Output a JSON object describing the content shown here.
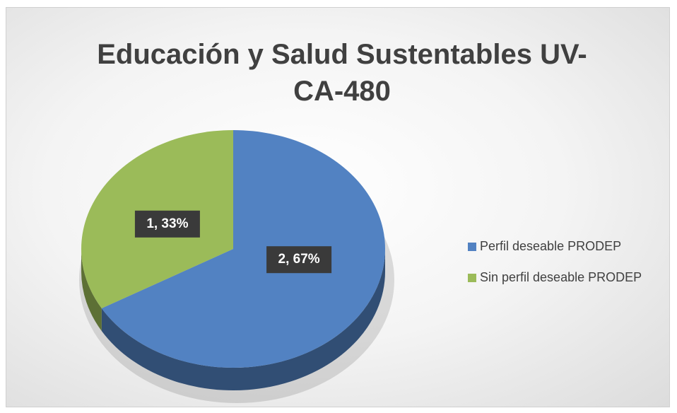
{
  "chart_data": {
    "type": "pie",
    "title": "Educación y Salud Sustentables  UV-CA-480",
    "categories": [
      "Perfil deseable PRODEP",
      "Sin perfil deseable PRODEP"
    ],
    "values": [
      2,
      1
    ],
    "value_labels": [
      "2, 67%",
      "1, 33%"
    ],
    "colors": [
      "#5282c2",
      "#9bbb59"
    ],
    "legend": "right"
  }
}
